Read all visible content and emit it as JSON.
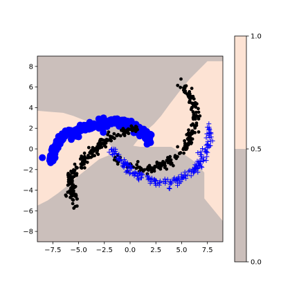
{
  "chart_data": {
    "type": "scatter",
    "title": "",
    "xlabel": "",
    "ylabel": "",
    "xlim": [
      -9,
      9
    ],
    "ylim": [
      -9,
      9
    ],
    "xticks": [
      -7.5,
      -5.0,
      -2.5,
      0.0,
      2.5,
      5.0,
      7.5
    ],
    "xtick_labels": [
      "−7.5",
      "−5.0",
      "−2.5",
      "0.0",
      "2.5",
      "5.0",
      "7.5"
    ],
    "yticks": [
      -8,
      -6,
      -4,
      -2,
      0,
      2,
      4,
      6,
      8
    ],
    "ytick_labels": [
      "−8",
      "−6",
      "−4",
      "−2",
      "0",
      "2",
      "4",
      "6",
      "8"
    ],
    "grid": false,
    "decision_regions": {
      "colors": {
        "region_0": "#cbbfbb",
        "region_1": "#fde3d4"
      },
      "region_1_polygons": [
        [
          [
            -9,
            3.7
          ],
          [
            -7.8,
            3.6
          ],
          [
            -6.5,
            3.5
          ],
          [
            -5.5,
            3.2
          ],
          [
            -4.5,
            2.8
          ],
          [
            -3.7,
            2.5
          ],
          [
            -3.2,
            2.2
          ],
          [
            -2.8,
            1.5
          ],
          [
            -2.3,
            0.8
          ],
          [
            -1.8,
            0.2
          ],
          [
            -1.3,
            -0.2
          ],
          [
            -2.0,
            -0.6
          ],
          [
            -3.0,
            -1.0
          ],
          [
            -4.0,
            -1.8
          ],
          [
            -5.0,
            -2.6
          ],
          [
            -6.0,
            -3.5
          ],
          [
            -7.0,
            -4.3
          ],
          [
            -8.0,
            -5.0
          ],
          [
            -9,
            -5.5
          ]
        ],
        [
          [
            0.3,
            0.3
          ],
          [
            1.0,
            1.2
          ],
          [
            1.6,
            1.8
          ],
          [
            2.3,
            2.4
          ],
          [
            3.0,
            3.2
          ],
          [
            3.8,
            4.3
          ],
          [
            4.8,
            5.6
          ],
          [
            5.8,
            6.8
          ],
          [
            6.8,
            7.8
          ],
          [
            7.5,
            8.5
          ],
          [
            9,
            8.5
          ],
          [
            9,
            -7.0
          ],
          [
            7.2,
            -4.8
          ],
          [
            7.2,
            -2.3
          ],
          [
            6.2,
            -1.2
          ],
          [
            5.2,
            -0.5
          ],
          [
            4.0,
            0.2
          ],
          [
            3.0,
            0.2
          ],
          [
            2.0,
            0.2
          ],
          [
            1.0,
            0.2
          ]
        ]
      ]
    },
    "colorbar": {
      "ticks": [
        0.0,
        0.5,
        1.0
      ],
      "tick_labels": [
        "0.0",
        "0.5",
        "1.0"
      ],
      "colors": {
        "low": "#cbbfbb",
        "high": "#fde3d4"
      }
    },
    "series": [
      {
        "marker": "circle",
        "color": "#0000ff",
        "path": [
          [
            -7.6,
            -1.2
          ],
          [
            -7.5,
            -0.2
          ],
          [
            -7.2,
            0.6
          ],
          [
            -6.6,
            1.1
          ],
          [
            -5.8,
            1.5
          ],
          [
            -5.0,
            1.9
          ],
          [
            -4.0,
            2.2
          ],
          [
            -3.0,
            2.4
          ],
          [
            -2.0,
            2.6
          ],
          [
            -1.0,
            2.6
          ],
          [
            0.0,
            2.4
          ],
          [
            0.8,
            2.0
          ],
          [
            1.4,
            1.6
          ],
          [
            1.9,
            1.1
          ],
          [
            2.0,
            0.8
          ]
        ],
        "count": 250
      },
      {
        "marker": "dot",
        "color": "#000000",
        "path": [
          [
            -5.5,
            -5.5
          ],
          [
            -5.6,
            -4.5
          ],
          [
            -5.8,
            -3.8
          ],
          [
            -5.9,
            -3.0
          ],
          [
            -5.6,
            -2.4
          ],
          [
            -4.8,
            -1.6
          ],
          [
            -4.3,
            -0.8
          ],
          [
            -3.5,
            -0.2
          ],
          [
            -2.8,
            0.5
          ],
          [
            -2.0,
            1.0
          ],
          [
            -1.3,
            1.4
          ],
          [
            -0.6,
            1.7
          ],
          [
            0.0,
            1.9
          ],
          [
            0.6,
            2.0
          ]
        ],
        "count": 200
      },
      {
        "marker": "dot",
        "color": "#000000",
        "path": [
          [
            -1.5,
            -0.9
          ],
          [
            -1.0,
            -1.4
          ],
          [
            0.0,
            -1.7
          ],
          [
            1.0,
            -1.9
          ],
          [
            2.0,
            -1.9
          ],
          [
            3.0,
            -1.6
          ],
          [
            4.0,
            -1.1
          ],
          [
            4.8,
            -0.4
          ],
          [
            5.5,
            0.4
          ],
          [
            6.0,
            1.4
          ],
          [
            6.3,
            2.4
          ],
          [
            6.3,
            3.4
          ],
          [
            6.1,
            4.4
          ],
          [
            5.8,
            5.3
          ],
          [
            5.2,
            6.0
          ],
          [
            4.8,
            6.3
          ]
        ],
        "count": 200
      },
      {
        "marker": "plus",
        "color": "#0000ff",
        "path": [
          [
            -1.8,
            -0.1
          ],
          [
            -1.2,
            -0.8
          ],
          [
            -0.4,
            -1.6
          ],
          [
            0.4,
            -2.3
          ],
          [
            1.4,
            -2.8
          ],
          [
            2.5,
            -3.2
          ],
          [
            3.6,
            -3.3
          ],
          [
            4.6,
            -3.0
          ],
          [
            5.4,
            -2.6
          ],
          [
            6.2,
            -2.1
          ],
          [
            6.8,
            -1.2
          ],
          [
            7.3,
            -0.2
          ],
          [
            7.6,
            0.8
          ],
          [
            7.8,
            1.8
          ],
          [
            7.7,
            2.4
          ]
        ],
        "count": 200
      }
    ]
  }
}
